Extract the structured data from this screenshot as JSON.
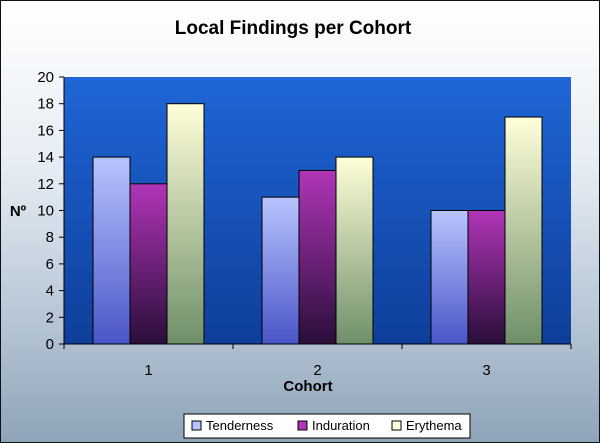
{
  "chart_data": {
    "type": "bar",
    "title": "Local Findings per Cohort",
    "xlabel": "Cohort",
    "ylabel": "Nº",
    "categories": [
      "1",
      "2",
      "3"
    ],
    "series": [
      {
        "name": "Tenderness",
        "values": [
          14,
          11,
          10
        ]
      },
      {
        "name": "Induration",
        "values": [
          12,
          13,
          10
        ]
      },
      {
        "name": "Erythema",
        "values": [
          18,
          14,
          17
        ]
      }
    ],
    "ylim": [
      0,
      20
    ],
    "ytick_step": 2,
    "grid": false,
    "legend_position": "bottom",
    "colors": {
      "plot_area_top": "#1f66d6",
      "plot_area_bottom": "#0e3e9a",
      "tenderness_top": "#b9c4ff",
      "tenderness_bottom": "#4a55c8",
      "induration_top": "#b035b8",
      "induration_bottom": "#2a0e3a",
      "erythema_top": "#ffffd8",
      "erythema_bottom": "#6e8f6a"
    }
  }
}
